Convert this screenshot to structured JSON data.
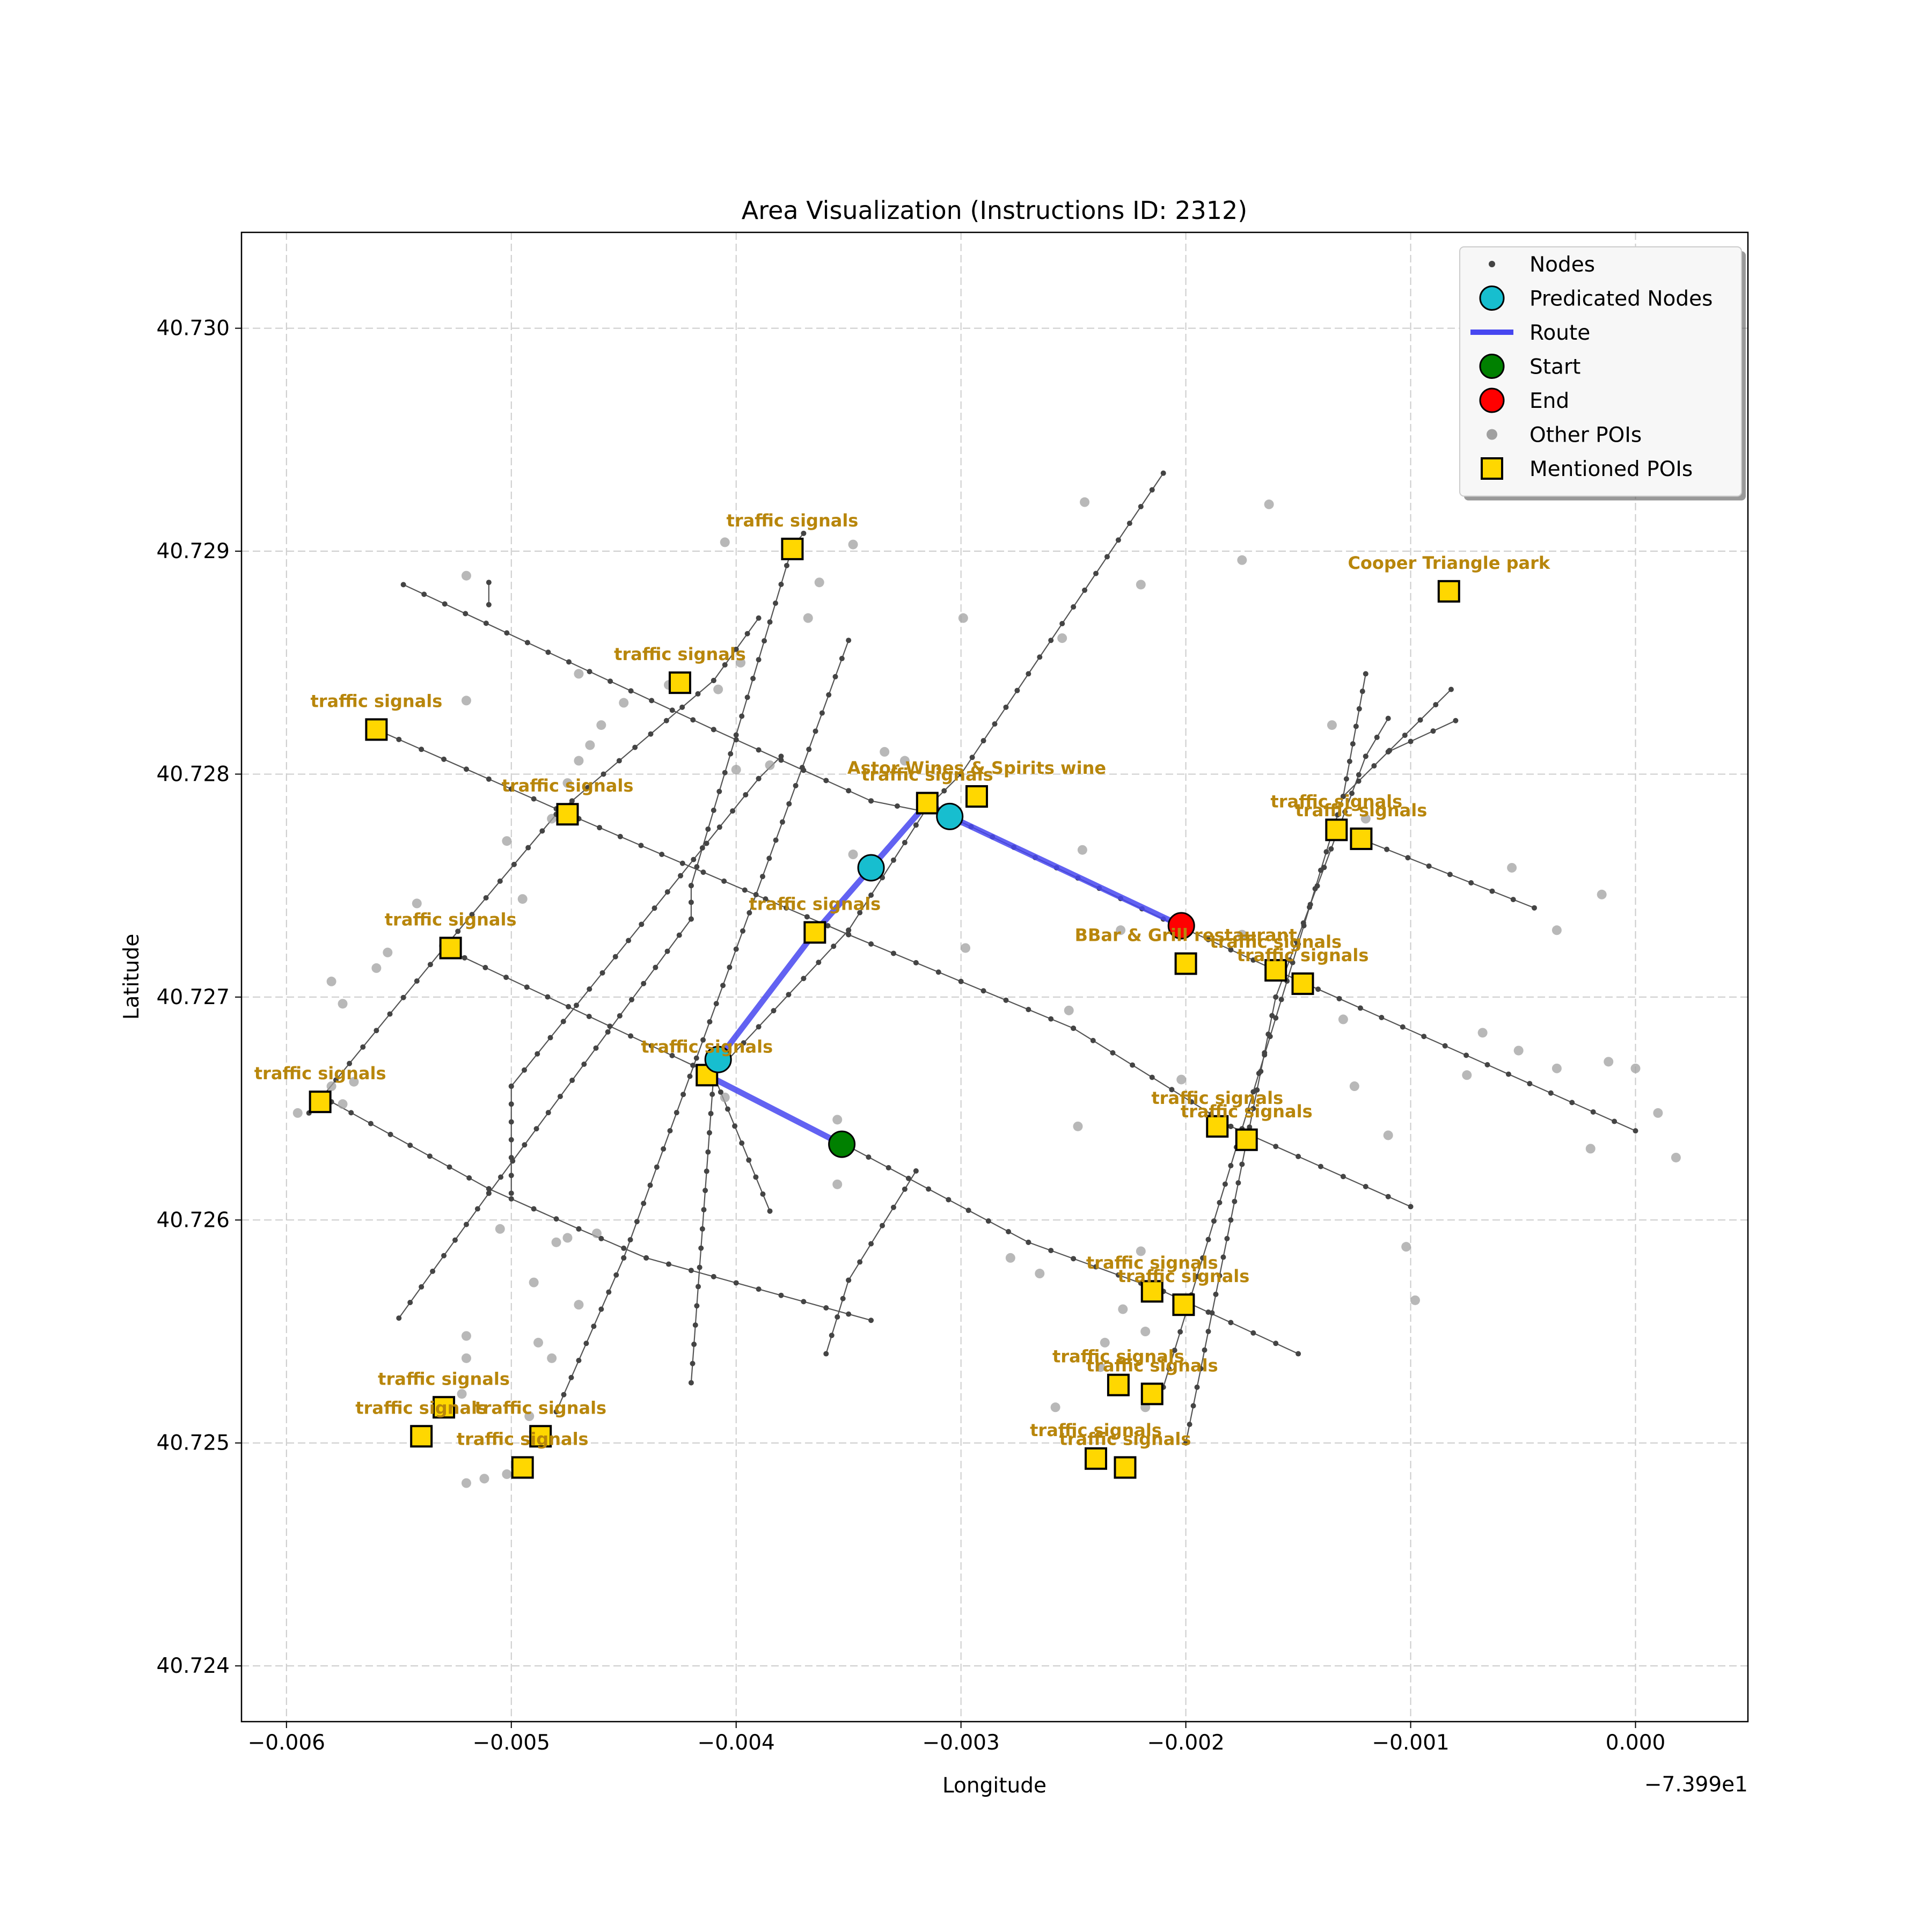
{
  "chart_data": {
    "type": "scatter",
    "title": "Area Visualization (Instructions ID: 2312)",
    "xlabel": "Longitude",
    "ylabel": "Latitude",
    "x_offset_text": "−7.399e1",
    "xlim": [
      -0.0062,
      0.0005
    ],
    "ylim": [
      40.72375,
      40.73043
    ],
    "x_ticks": [
      -0.006,
      -0.005,
      -0.004,
      -0.003,
      -0.002,
      -0.001,
      0.0
    ],
    "x_tick_labels": [
      "−0.006",
      "−0.005",
      "−0.004",
      "−0.003",
      "−0.002",
      "−0.001",
      "0.000"
    ],
    "y_ticks": [
      40.724,
      40.725,
      40.726,
      40.727,
      40.728,
      40.729,
      40.73
    ],
    "y_tick_labels": [
      "40.724",
      "40.725",
      "40.726",
      "40.727",
      "40.728",
      "40.729",
      "40.730"
    ],
    "grid": true,
    "legend_position": "top-right",
    "legend": [
      {
        "label": "Nodes",
        "marker": "small-dot",
        "color": "#444444"
      },
      {
        "label": "Predicated Nodes",
        "marker": "circle",
        "color": "#17becf"
      },
      {
        "label": "Route",
        "marker": "line",
        "color": "#4747f0"
      },
      {
        "label": "Start",
        "marker": "circle",
        "color": "#008000"
      },
      {
        "label": "End",
        "marker": "circle",
        "color": "#ff0000"
      },
      {
        "label": "Other POIs",
        "marker": "dot",
        "color": "#a0a0a0"
      },
      {
        "label": "Mentioned POIs",
        "marker": "square",
        "color": "#ffd700"
      }
    ],
    "colors": {
      "node": "#444444",
      "street": "#555555",
      "predicted": "#17becf",
      "route": "#4747f0",
      "start": "#008000",
      "end": "#ff0000",
      "other_poi": "#a0a0a0",
      "mentioned_poi": "#ffd700",
      "poi_label": "#b8860b",
      "grid": "#cccccc"
    },
    "streets": [
      [
        [
          -0.00548,
          40.72885
        ],
        [
          -0.0041,
          40.7282
        ],
        [
          -0.0034,
          40.72788
        ],
        [
          -0.00305,
          40.72781
        ],
        [
          -0.0021,
          40.72735
        ],
        [
          -0.0016,
          40.72712
        ],
        [
          0.0,
          40.7264
        ]
      ],
      [
        [
          -0.0056,
          40.7282
        ],
        [
          -0.0047,
          40.7278
        ],
        [
          -0.0035,
          40.72728
        ],
        [
          -0.0025,
          40.72686
        ],
        [
          -0.0018,
          40.72642
        ],
        [
          -0.001,
          40.72606
        ]
      ],
      [
        [
          -0.0053,
          40.72722
        ],
        [
          -0.0041,
          40.72665
        ],
        [
          -0.00385,
          40.72604
        ]
      ],
      [
        [
          -0.0058,
          40.72653
        ],
        [
          -0.0051,
          40.72614
        ],
        [
          -0.0047,
          40.72596
        ],
        [
          -0.0044,
          40.72583
        ],
        [
          -0.0034,
          40.72555
        ]
      ],
      [
        [
          -0.0035,
          40.72633
        ],
        [
          -0.0027,
          40.7259
        ],
        [
          -0.0021,
          40.72568
        ],
        [
          -0.0015,
          40.7254
        ]
      ],
      [
        [
          -0.0012,
          40.7277
        ],
        [
          -0.00045,
          40.7274
        ]
      ],
      [
        [
          -0.0055,
          40.72556
        ],
        [
          -0.0051,
          40.72612
        ],
        [
          -0.0042,
          40.72735
        ],
        [
          -0.0042,
          40.7275
        ],
        [
          -0.00375,
          40.72902
        ],
        [
          -0.0037,
          40.72908
        ]
      ],
      [
        [
          -0.0059,
          40.72648
        ],
        [
          -0.0053,
          40.72722
        ],
        [
          -0.0048,
          40.72782
        ],
        [
          -0.0041,
          40.72842
        ],
        [
          -0.0039,
          40.7287
        ]
      ],
      [
        [
          -0.005,
          40.72612
        ],
        [
          -0.005,
          40.7266
        ],
        [
          -0.0039,
          40.72798
        ],
        [
          -0.0038,
          40.72808
        ]
      ],
      [
        [
          -0.0042,
          40.72527
        ],
        [
          -0.0041,
          40.72665
        ],
        [
          -0.0035,
          40.7273
        ],
        [
          -0.00315,
          40.72785
        ],
        [
          -0.003,
          40.728
        ],
        [
          -0.0021,
          40.72935
        ]
      ],
      [
        [
          -0.0048,
          40.72514
        ],
        [
          -0.0045,
          40.72583
        ],
        [
          -0.0035,
          40.7286
        ]
      ],
      [
        [
          -0.0036,
          40.7254
        ],
        [
          -0.0035,
          40.72573
        ],
        [
          -0.0032,
          40.72622
        ]
      ],
      [
        [
          -0.0021,
          40.72525
        ],
        [
          -0.0013,
          40.7279
        ],
        [
          -0.0012,
          40.72845
        ]
      ],
      [
        [
          -0.002,
          40.725
        ],
        [
          -0.0016,
          40.727
        ],
        [
          -0.0012,
          40.72808
        ],
        [
          -0.0011,
          40.72825
        ]
      ],
      [
        [
          -0.0013,
          40.7279
        ],
        [
          -0.00082,
          40.72838
        ]
      ],
      [
        [
          -0.0011,
          40.7281
        ],
        [
          -0.0008,
          40.72824
        ]
      ],
      [
        [
          -0.0051,
          40.72886
        ],
        [
          -0.0051,
          40.72876
        ]
      ]
    ],
    "nodes_density_step": 0.00011,
    "other_pois": [
      [
        -0.0052,
        40.72889
      ],
      [
        -0.00405,
        40.72904
      ],
      [
        -0.00348,
        40.72903
      ],
      [
        -0.00363,
        40.72886
      ],
      [
        -0.00368,
        40.7287
      ],
      [
        -0.0052,
        40.72833
      ],
      [
        -0.0047,
        40.72845
      ],
      [
        -0.0043,
        40.7284
      ],
      [
        -0.00398,
        40.7285
      ],
      [
        -0.00408,
        40.72838
      ],
      [
        -0.0045,
        40.72832
      ],
      [
        -0.0046,
        40.72822
      ],
      [
        -0.00465,
        40.72813
      ],
      [
        -0.0047,
        40.72806
      ],
      [
        -0.004,
        40.72802
      ],
      [
        -0.00245,
        40.72922
      ],
      [
        -0.00175,
        40.72896
      ],
      [
        -0.00163,
        40.72921
      ],
      [
        -0.00299,
        40.7287
      ],
      [
        -0.00255,
        40.72861
      ],
      [
        -0.0022,
        40.72885
      ],
      [
        -0.00246,
        40.72766
      ],
      [
        -0.00175,
        40.72728
      ],
      [
        -0.00334,
        40.7281
      ],
      [
        -0.00325,
        40.72806
      ],
      [
        -0.00385,
        40.72804
      ],
      [
        -0.00475,
        40.72796
      ],
      [
        -0.00482,
        40.7278
      ],
      [
        -0.00495,
        40.72744
      ],
      [
        -0.00502,
        40.7277
      ],
      [
        -0.00348,
        40.72764
      ],
      [
        -0.00542,
        40.72742
      ],
      [
        -0.0058,
        40.72707
      ],
      [
        -0.00575,
        40.72697
      ],
      [
        -0.0056,
        40.72713
      ],
      [
        -0.00555,
        40.7272
      ],
      [
        -0.0053,
        40.72723
      ],
      [
        -0.00298,
        40.72722
      ],
      [
        -0.00229,
        40.7273
      ],
      [
        -0.00252,
        40.72694
      ],
      [
        -0.00202,
        40.72663
      ],
      [
        -0.0058,
        40.7266
      ],
      [
        -0.0057,
        40.72662
      ],
      [
        -0.00575,
        40.72652
      ],
      [
        -0.00595,
        40.72648
      ],
      [
        -0.00405,
        40.72655
      ],
      [
        -0.00355,
        40.72645
      ],
      [
        -0.00248,
        40.72642
      ],
      [
        -0.0013,
        40.7269
      ],
      [
        -0.00125,
        40.7266
      ],
      [
        -0.0011,
        40.72638
      ],
      [
        -0.00075,
        40.72665
      ],
      [
        -0.00068,
        40.72684
      ],
      [
        -0.00052,
        40.72676
      ],
      [
        -0.00035,
        40.72668
      ],
      [
        -0.00012,
        40.72671
      ],
      [
        0.0,
        40.72668
      ],
      [
        0.0001,
        40.72648
      ],
      [
        0.00018,
        40.72628
      ],
      [
        -0.0002,
        40.72632
      ],
      [
        -0.00055,
        40.72758
      ],
      [
        -0.00035,
        40.7273
      ],
      [
        -0.00015,
        40.72746
      ],
      [
        -0.00102,
        40.72588
      ],
      [
        -0.00098,
        40.72564
      ],
      [
        -0.00135,
        40.72822
      ],
      [
        -0.0012,
        40.7278
      ],
      [
        -0.00355,
        40.72616
      ],
      [
        -0.00278,
        40.72583
      ],
      [
        -0.00265,
        40.72576
      ],
      [
        -0.0022,
        40.72586
      ],
      [
        -0.00228,
        40.7256
      ],
      [
        -0.00218,
        40.7255
      ],
      [
        -0.00236,
        40.72545
      ],
      [
        -0.00238,
        40.72534
      ],
      [
        -0.00258,
        40.72516
      ],
      [
        -0.00218,
        40.72516
      ],
      [
        -0.0049,
        40.72572
      ],
      [
        -0.0047,
        40.72562
      ],
      [
        -0.00462,
        40.72594
      ],
      [
        -0.0048,
        40.7259
      ],
      [
        -0.00488,
        40.72545
      ],
      [
        -0.00482,
        40.72538
      ],
      [
        -0.0052,
        40.72538
      ],
      [
        -0.00522,
        40.72522
      ],
      [
        -0.00492,
        40.72512
      ],
      [
        -0.00502,
        40.72486
      ],
      [
        -0.00512,
        40.72484
      ],
      [
        -0.0052,
        40.72482
      ],
      [
        -0.0052,
        40.72548
      ],
      [
        -0.00475,
        40.72592
      ],
      [
        -0.00505,
        40.72596
      ],
      [
        -0.0049,
        40.72505
      ]
    ],
    "route": [
      [
        -0.00353,
        40.72634
      ],
      [
        -0.00413,
        40.72665
      ],
      [
        -0.00408,
        40.72672
      ],
      [
        -0.00365,
        40.72729
      ],
      [
        -0.0034,
        40.72758
      ],
      [
        -0.00315,
        40.72787
      ],
      [
        -0.00305,
        40.72781
      ],
      [
        -0.00202,
        40.72732
      ]
    ],
    "predicted_nodes": [
      [
        -0.00408,
        40.72672
      ],
      [
        -0.0034,
        40.72758
      ],
      [
        -0.00305,
        40.72781
      ]
    ],
    "start": [
      -0.00353,
      40.72634
    ],
    "end": [
      -0.00202,
      40.72732
    ],
    "mentioned_pois": [
      {
        "name": "traffic signals",
        "x": -0.00375,
        "y": 40.72901
      },
      {
        "name": "traffic signals",
        "x": -0.00425,
        "y": 40.72841
      },
      {
        "name": "traffic signals",
        "x": -0.0056,
        "y": 40.7282
      },
      {
        "name": "traffic signals",
        "x": -0.00475,
        "y": 40.72782
      },
      {
        "name": "traffic signals",
        "x": -0.00527,
        "y": 40.72722
      },
      {
        "name": "traffic signals",
        "x": -0.00585,
        "y": 40.72653
      },
      {
        "name": "traffic signals",
        "x": -0.00365,
        "y": 40.72729
      },
      {
        "name": "traffic signals",
        "x": -0.00413,
        "y": 40.72665
      },
      {
        "name": "traffic signals",
        "x": -0.00315,
        "y": 40.72787
      },
      {
        "name": "Astor Wines & Spirits     wine",
        "x": -0.00293,
        "y": 40.7279
      },
      {
        "name": "Cooper Triangle   park",
        "x": -0.00083,
        "y": 40.72882
      },
      {
        "name": "traffic signals",
        "x": -0.00133,
        "y": 40.72775
      },
      {
        "name": "traffic signals",
        "x": -0.00122,
        "y": 40.72771
      },
      {
        "name": "BBar & Grill restaurant",
        "x": -0.002,
        "y": 40.72715
      },
      {
        "name": "traffic signals",
        "x": -0.0016,
        "y": 40.72712
      },
      {
        "name": "traffic signals",
        "x": -0.00148,
        "y": 40.72706
      },
      {
        "name": "traffic signals",
        "x": -0.00186,
        "y": 40.72642
      },
      {
        "name": "traffic signals",
        "x": -0.00173,
        "y": 40.72636
      },
      {
        "name": "traffic signals",
        "x": -0.00215,
        "y": 40.72568
      },
      {
        "name": "traffic signals",
        "x": -0.00201,
        "y": 40.72562
      },
      {
        "name": "traffic signals",
        "x": -0.0023,
        "y": 40.72526
      },
      {
        "name": "traffic signals",
        "x": -0.00215,
        "y": 40.72522
      },
      {
        "name": "traffic signals",
        "x": -0.0024,
        "y": 40.72493
      },
      {
        "name": "traffic signals",
        "x": -0.00227,
        "y": 40.72489
      },
      {
        "name": "traffic signals",
        "x": -0.0053,
        "y": 40.72516
      },
      {
        "name": "traffic signals",
        "x": -0.0054,
        "y": 40.72503
      },
      {
        "name": "traffic signals",
        "x": -0.00487,
        "y": 40.72503
      },
      {
        "name": "traffic signals",
        "x": -0.00495,
        "y": 40.72489
      }
    ]
  }
}
